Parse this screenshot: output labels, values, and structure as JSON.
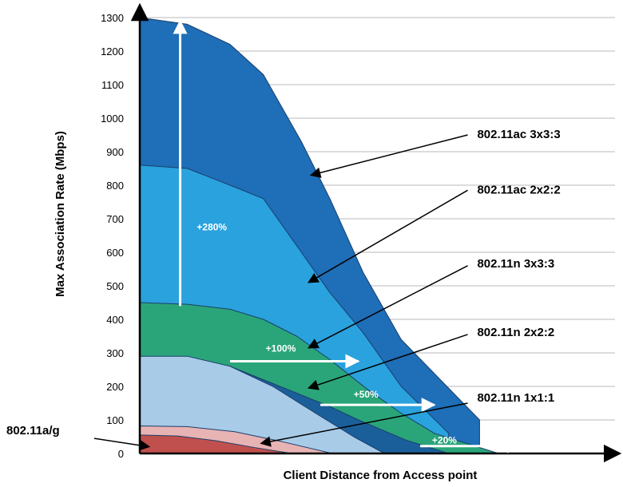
{
  "chart_data": {
    "type": "area",
    "xlabel": "Client Distance from Access point",
    "ylabel": "Max Association Rate  (Mbps)",
    "ylim": [
      0,
      1300
    ],
    "yticks": [
      "0",
      "100",
      "200",
      "300",
      "400",
      "500",
      "600",
      "700",
      "800",
      "900",
      "1000",
      "1100",
      "1200",
      "1300"
    ],
    "x_range": [
      0,
      100
    ],
    "grid": true,
    "colors": {
      "ac3": "#1e6eb8",
      "ac2": "#2aa2dd",
      "n3": "#2aa57a",
      "n2": "#1b5f9a",
      "n1": "#a8cbe8",
      "ag_outer": "#e8b3b3",
      "ag": "#c0504d",
      "line": "#1a3f6b",
      "arrow": "#000000",
      "gain_arrow": "#ffffff"
    },
    "series": [
      {
        "key": "ac3",
        "name": "802.11ac 3x3:3",
        "x": [
          0,
          10,
          19,
          26,
          34,
          40,
          47,
          55,
          71.5
        ],
        "y": [
          1300,
          1280,
          1220,
          1130,
          930,
          760,
          540,
          340,
          100
        ]
      },
      {
        "key": "ac2",
        "name": "802.11ac 2x2:2",
        "x": [
          0,
          10,
          19,
          26,
          34,
          40,
          47,
          55,
          65
        ],
        "y": [
          860,
          850,
          800,
          760,
          600,
          480,
          360,
          200,
          60
        ]
      },
      {
        "key": "n3",
        "name": "802.11n 3x3:3",
        "x": [
          0,
          10,
          19,
          26,
          33,
          40,
          48,
          55,
          62,
          75.5
        ],
        "y": [
          450,
          445,
          430,
          400,
          350,
          280,
          190,
          120,
          60,
          0
        ]
      },
      {
        "key": "n2",
        "name": "802.11n 2x2:2",
        "x": [
          0,
          10,
          19,
          26,
          33,
          40,
          46,
          56,
          65
        ],
        "y": [
          290,
          285,
          260,
          220,
          180,
          140,
          100,
          40,
          0
        ]
      },
      {
        "key": "n1",
        "name": "802.11n 1x1:1",
        "x": [
          0,
          10,
          19,
          28,
          37,
          45,
          51.5
        ],
        "y": [
          290,
          290,
          260,
          200,
          120,
          50,
          0
        ]
      },
      {
        "key": "ag_outer",
        "name": "",
        "x": [
          0,
          10,
          20,
          30,
          40.5
        ],
        "y": [
          82,
          80,
          65,
          35,
          0
        ]
      },
      {
        "key": "ag",
        "name": "802.11a/g",
        "x": [
          0,
          8,
          16,
          24,
          32
        ],
        "y": [
          55,
          52,
          38,
          18,
          0
        ]
      }
    ],
    "annotations": {
      "gains": [
        {
          "label": "+280%",
          "direction": "vertical",
          "x": 8.5,
          "y_from": 440,
          "y_to": 1290,
          "label_x": 12,
          "label_y": 665
        },
        {
          "label": "+100%",
          "direction": "horizontal",
          "y": 275,
          "x_from": 19,
          "x_to": 46,
          "label_x": 26.5,
          "label_y": 303
        },
        {
          "label": "+50%",
          "direction": "horizontal",
          "y": 145,
          "x_from": 38,
          "x_to": 62,
          "label_x": 45,
          "label_y": 167
        },
        {
          "label": "+20%",
          "direction": "horizontal",
          "y": 22,
          "x_from": 59,
          "x_to": 80,
          "label_x": 61.5,
          "label_y": 30
        }
      ],
      "callouts": [
        {
          "label": "802.11ac 3x3:3",
          "text_x": 71,
          "text_y": 940,
          "arrow_from_x": 69,
          "arrow_from_y": 950,
          "arrow_to_x": 36,
          "arrow_to_y": 830
        },
        {
          "label": "802.11ac 2x2:2",
          "text_x": 71,
          "text_y": 775,
          "arrow_from_x": 69,
          "arrow_from_y": 785,
          "arrow_to_x": 35.5,
          "arrow_to_y": 510
        },
        {
          "label": "802.11n 3x3:3",
          "text_x": 71,
          "text_y": 555,
          "arrow_from_x": 69,
          "arrow_from_y": 560,
          "arrow_to_x": 35.5,
          "arrow_to_y": 315
        },
        {
          "label": "802.11n 2x2:2",
          "text_x": 71,
          "text_y": 350,
          "arrow_from_x": 69,
          "arrow_from_y": 355,
          "arrow_to_x": 35.5,
          "arrow_to_y": 195
        },
        {
          "label": "802.11n 1x1:1",
          "text_x": 71,
          "text_y": 155,
          "arrow_from_x": 69,
          "arrow_from_y": 150,
          "arrow_to_x": 25.5,
          "arrow_to_y": 30
        }
      ],
      "left_callout": {
        "label": "802.11a/g",
        "arrow_from_y": 45,
        "arrow_to_x": 2,
        "arrow_to_y": 20
      }
    }
  }
}
